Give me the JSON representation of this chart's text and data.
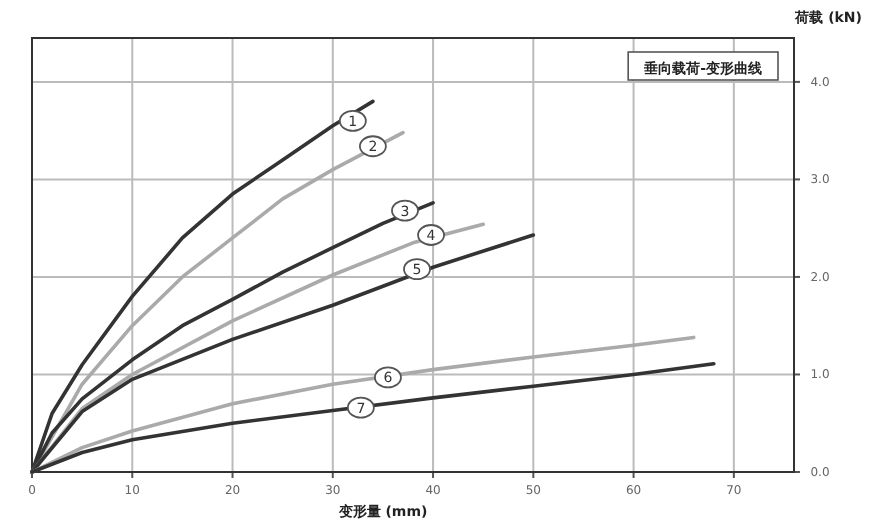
{
  "chart_data": {
    "type": "line",
    "title": "垂向载荷-变形曲线",
    "xlabel": "变形量 (mm)",
    "ylabel": "荷载 (kN)",
    "xlim": [
      0,
      76
    ],
    "ylim": [
      0,
      4.45
    ],
    "xticks": [
      0,
      10,
      20,
      30,
      40,
      50,
      60,
      70
    ],
    "yticks": [
      {
        "value": 0,
        "label": "0.0"
      },
      {
        "value": 1,
        "label": "1.0"
      },
      {
        "value": 2,
        "label": "2.0"
      },
      {
        "value": 3,
        "label": "3.0"
      },
      {
        "value": 4,
        "label": "4.0"
      }
    ],
    "grid": true,
    "series": [
      {
        "color": "#333333",
        "x": [
          0,
          2,
          5,
          10,
          15,
          20,
          25,
          30,
          34
        ],
        "values": [
          0,
          0.6,
          1.1,
          1.8,
          2.4,
          2.85,
          3.2,
          3.55,
          3.8
        ]
      },
      {
        "color": "#aaaaaa",
        "x": [
          0,
          5,
          10,
          15,
          20,
          25,
          30,
          37
        ],
        "values": [
          0,
          0.9,
          1.5,
          2.0,
          2.4,
          2.8,
          3.1,
          3.48
        ]
      },
      {
        "color": "#333333",
        "x": [
          0,
          2,
          5,
          10,
          15,
          20,
          25,
          30,
          35,
          40
        ],
        "values": [
          0,
          0.4,
          0.75,
          1.15,
          1.5,
          1.77,
          2.05,
          2.3,
          2.55,
          2.76
        ]
      },
      {
        "color": "#aaaaaa",
        "x": [
          0,
          5,
          10,
          20,
          30,
          38,
          45
        ],
        "values": [
          0,
          0.65,
          1.0,
          1.55,
          2.02,
          2.35,
          2.54
        ]
      },
      {
        "color": "#333333",
        "x": [
          0,
          5,
          10,
          20,
          30,
          40,
          50
        ],
        "values": [
          0,
          0.62,
          0.95,
          1.36,
          1.71,
          2.1,
          2.43
        ]
      },
      {
        "color": "#aaaaaa",
        "x": [
          0,
          5,
          10,
          20,
          30,
          40,
          50,
          60,
          66
        ],
        "values": [
          0,
          0.25,
          0.42,
          0.7,
          0.9,
          1.05,
          1.18,
          1.3,
          1.38
        ]
      },
      {
        "color": "#333333",
        "x": [
          0,
          5,
          10,
          20,
          30,
          40,
          50,
          60,
          68
        ],
        "values": [
          0,
          0.2,
          0.33,
          0.5,
          0.63,
          0.76,
          0.88,
          1.0,
          1.11
        ]
      }
    ],
    "annotations": [
      {
        "text": "1",
        "x": 32,
        "y": 3.6
      },
      {
        "text": "2",
        "x": 34,
        "y": 3.34
      },
      {
        "text": "3",
        "x": 37.2,
        "y": 2.68
      },
      {
        "text": "4",
        "x": 39.8,
        "y": 2.43
      },
      {
        "text": "5",
        "x": 38.4,
        "y": 2.08
      },
      {
        "text": "6",
        "x": 35.5,
        "y": 0.97
      },
      {
        "text": "7",
        "x": 32.8,
        "y": 0.66
      }
    ]
  }
}
